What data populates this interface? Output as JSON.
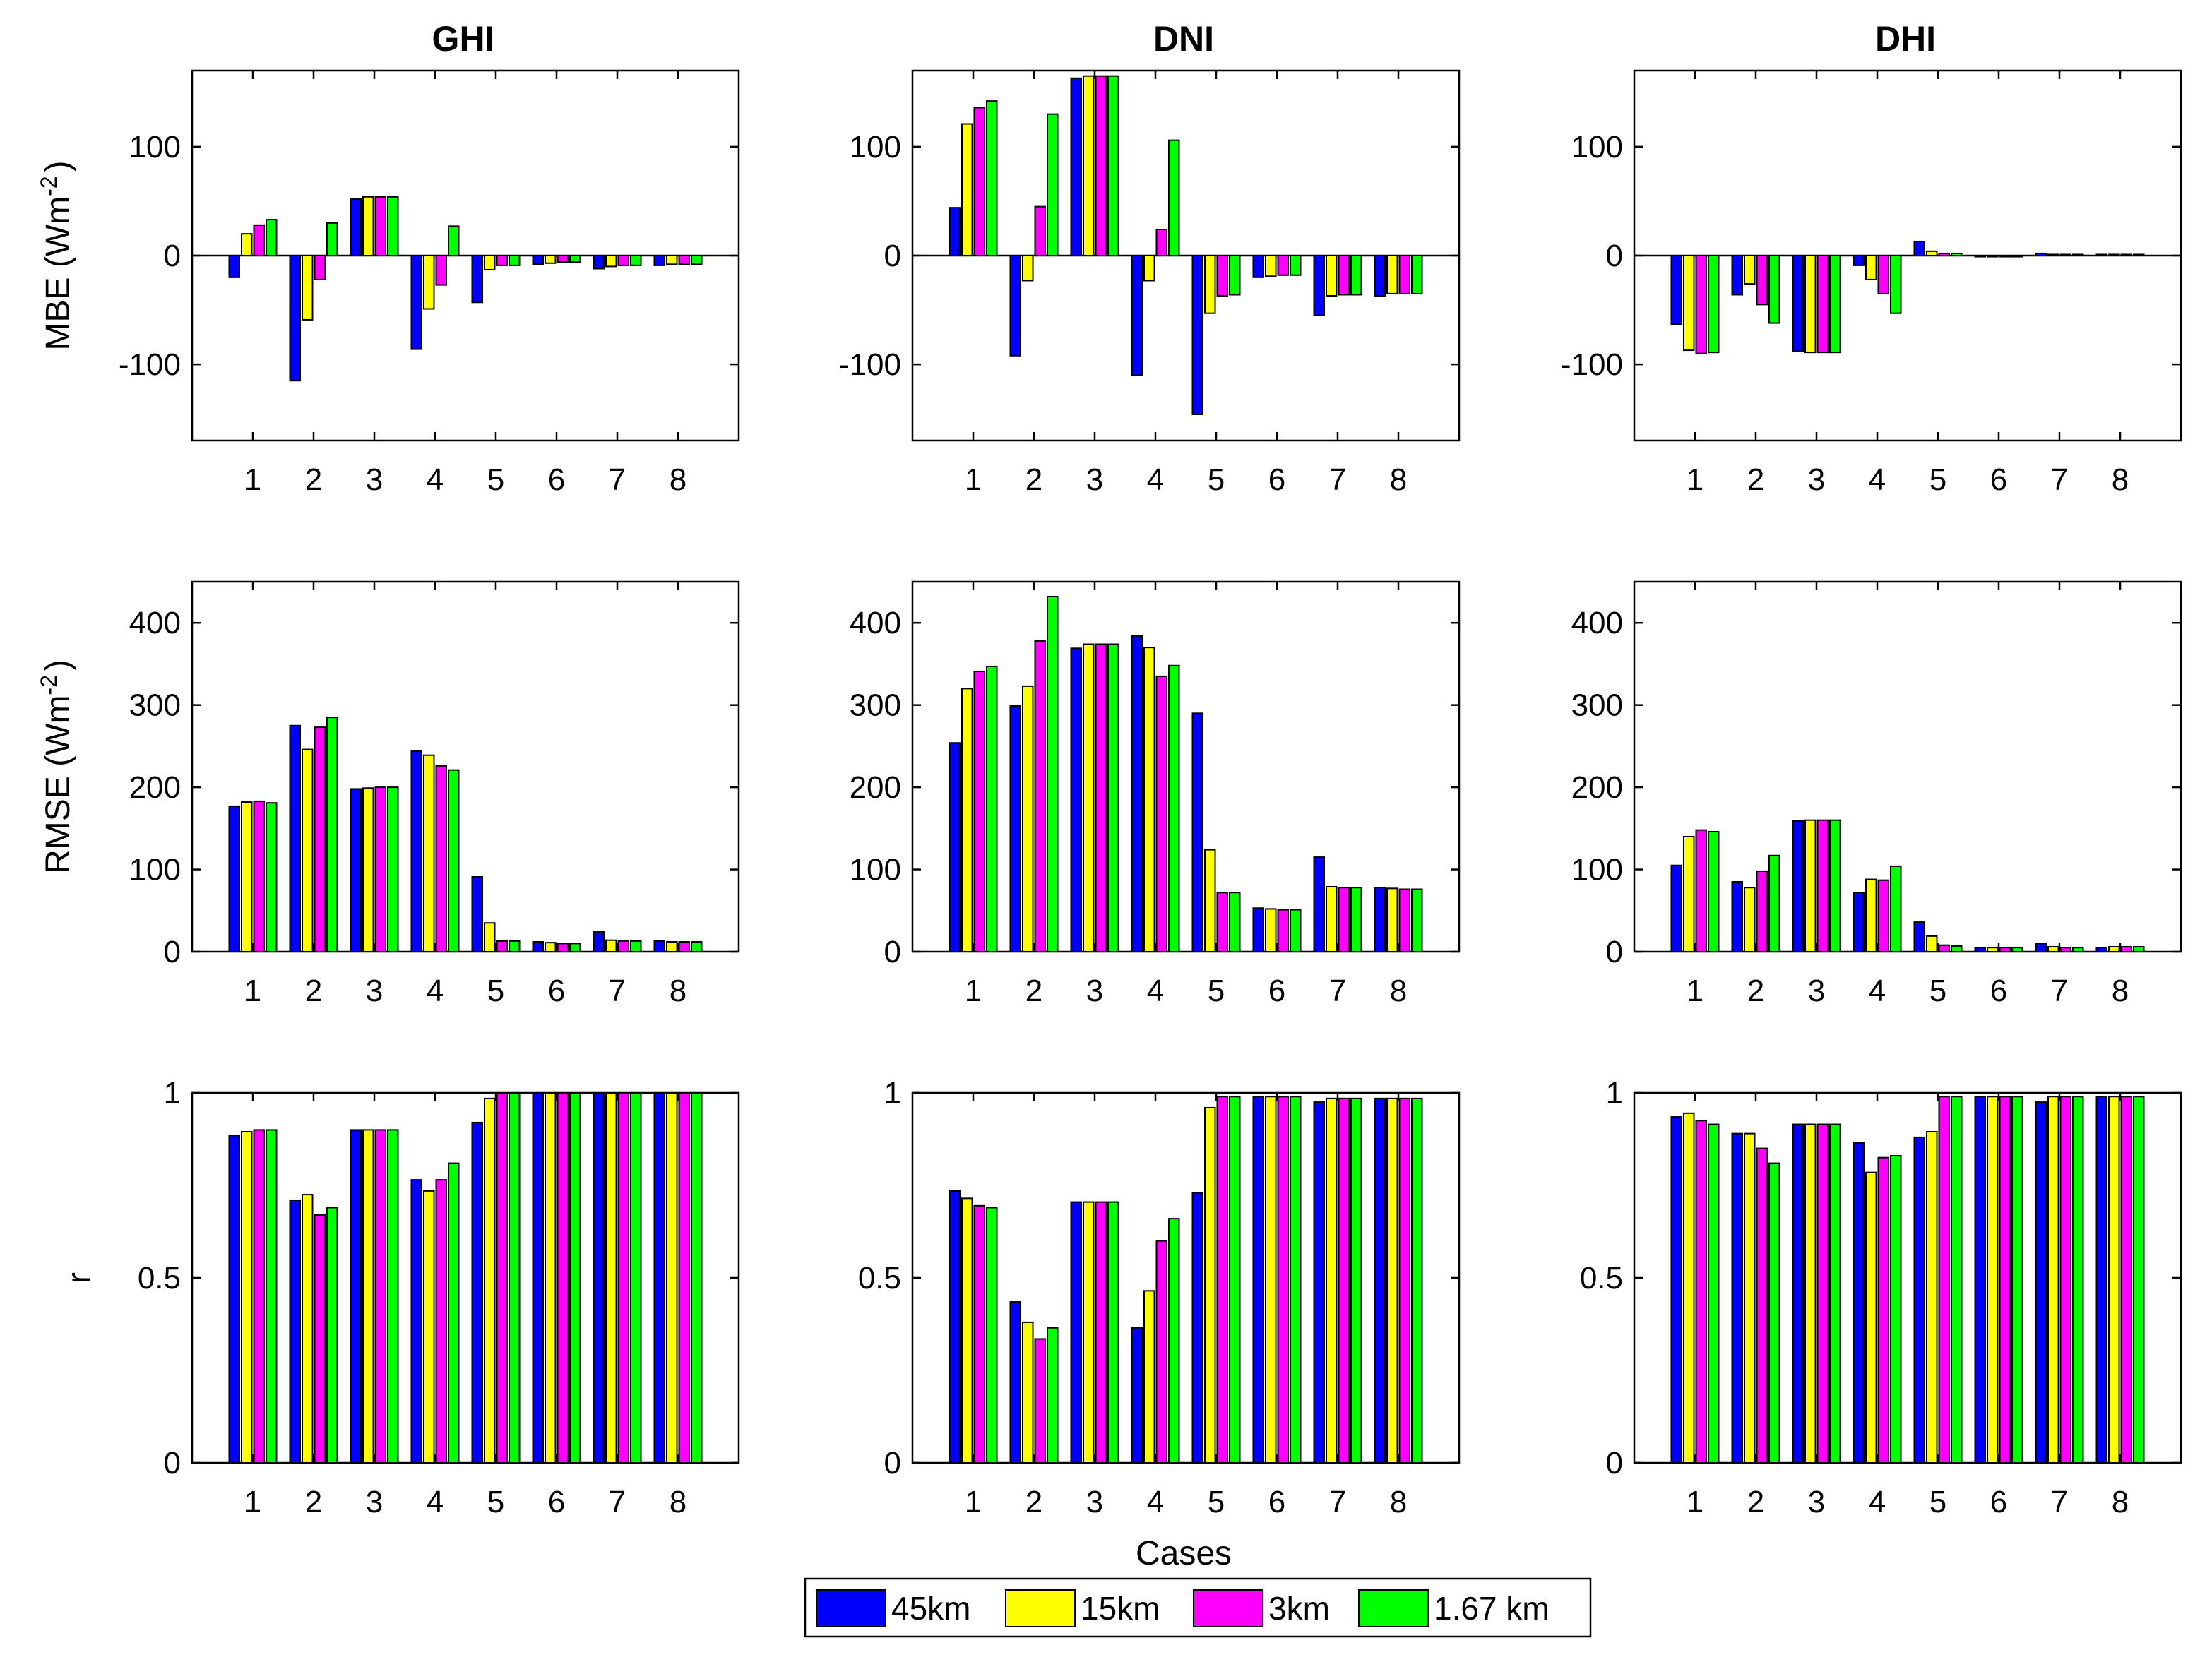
{
  "columns": [
    "GHI",
    "DNI",
    "DHI"
  ],
  "xlabel": "Cases",
  "row_ylabels": {
    "mbe": {
      "pre": "MBE (Wm",
      "sup": "-2",
      "post": ")"
    },
    "rmse": {
      "pre": "RMSE (Wm",
      "sup": "-2",
      "post": ")"
    },
    "r": {
      "pre": "r",
      "sup": "",
      "post": ""
    }
  },
  "legend": [
    {
      "name": "45km",
      "color": "#0000ff"
    },
    {
      "name": "15km",
      "color": "#ffff00"
    },
    {
      "name": "3km",
      "color": "#ff00ff"
    },
    {
      "name": "1.67 km",
      "color": "#00ff00"
    }
  ],
  "chart_data": [
    {
      "type": "bar",
      "row": "mbe",
      "col": "GHI",
      "ylim": [
        -170,
        170
      ],
      "yticks": [
        -100,
        0,
        100
      ],
      "ytick_labels": [
        "-100",
        "0",
        "100"
      ],
      "categories": [
        "1",
        "2",
        "3",
        "4",
        "5",
        "6",
        "7",
        "8"
      ],
      "series": [
        {
          "name": "45km",
          "values": [
            -20,
            -115,
            52,
            -86,
            -43,
            -8,
            -12,
            -9
          ]
        },
        {
          "name": "15km",
          "values": [
            20,
            -59,
            54,
            -49,
            -13,
            -7,
            -10,
            -8
          ]
        },
        {
          "name": "3km",
          "values": [
            28,
            -22,
            54,
            -27,
            -9,
            -6,
            -9,
            -8
          ]
        },
        {
          "name": "1.67 km",
          "values": [
            33,
            30,
            54,
            27,
            -9,
            -6,
            -9,
            -8
          ]
        }
      ]
    },
    {
      "type": "bar",
      "row": "mbe",
      "col": "DNI",
      "ylim": [
        -170,
        170
      ],
      "yticks": [
        -100,
        0,
        100
      ],
      "ytick_labels": [
        "-100",
        "0",
        "100"
      ],
      "categories": [
        "1",
        "2",
        "3",
        "4",
        "5",
        "6",
        "7",
        "8"
      ],
      "series": [
        {
          "name": "45km",
          "values": [
            44,
            -92,
            163,
            -110,
            -146,
            -20,
            -55,
            -37
          ]
        },
        {
          "name": "15km",
          "values": [
            121,
            -23,
            165,
            -23,
            -53,
            -19,
            -37,
            -35
          ]
        },
        {
          "name": "3km",
          "values": [
            136,
            45,
            165,
            24,
            -37,
            -18,
            -36,
            -35
          ]
        },
        {
          "name": "1.67 km",
          "values": [
            142,
            130,
            165,
            106,
            -36,
            -18,
            -36,
            -35
          ]
        }
      ]
    },
    {
      "type": "bar",
      "row": "mbe",
      "col": "DHI",
      "ylim": [
        -170,
        170
      ],
      "yticks": [
        -100,
        0,
        100
      ],
      "ytick_labels": [
        "-100",
        "0",
        "100"
      ],
      "categories": [
        "1",
        "2",
        "3",
        "4",
        "5",
        "6",
        "7",
        "8"
      ],
      "series": [
        {
          "name": "45km",
          "values": [
            -63,
            -36,
            -88,
            -9,
            13,
            -1,
            2,
            1
          ]
        },
        {
          "name": "15km",
          "values": [
            -87,
            -26,
            -89,
            -22,
            4,
            -1,
            1,
            1
          ]
        },
        {
          "name": "3km",
          "values": [
            -90,
            -45,
            -89,
            -35,
            2,
            -1,
            1,
            1
          ]
        },
        {
          "name": "1.67 km",
          "values": [
            -89,
            -62,
            -89,
            -53,
            2,
            -1,
            1,
            1
          ]
        }
      ]
    },
    {
      "type": "bar",
      "row": "rmse",
      "col": "GHI",
      "ylim": [
        0,
        450
      ],
      "yticks": [
        0,
        100,
        200,
        300,
        400
      ],
      "ytick_labels": [
        "0",
        "100",
        "200",
        "300",
        "400"
      ],
      "categories": [
        "1",
        "2",
        "3",
        "4",
        "5",
        "6",
        "7",
        "8"
      ],
      "series": [
        {
          "name": "45km",
          "values": [
            177,
            275,
            198,
            244,
            91,
            12,
            24,
            13
          ]
        },
        {
          "name": "15km",
          "values": [
            182,
            246,
            199,
            239,
            35,
            11,
            14,
            12
          ]
        },
        {
          "name": "3km",
          "values": [
            183,
            273,
            200,
            226,
            13,
            10,
            13,
            12
          ]
        },
        {
          "name": "1.67 km",
          "values": [
            181,
            285,
            200,
            221,
            13,
            10,
            13,
            12
          ]
        }
      ]
    },
    {
      "type": "bar",
      "row": "rmse",
      "col": "DNI",
      "ylim": [
        0,
        450
      ],
      "yticks": [
        0,
        100,
        200,
        300,
        400
      ],
      "ytick_labels": [
        "0",
        "100",
        "200",
        "300",
        "400"
      ],
      "categories": [
        "1",
        "2",
        "3",
        "4",
        "5",
        "6",
        "7",
        "8"
      ],
      "series": [
        {
          "name": "45km",
          "values": [
            254,
            299,
            369,
            384,
            290,
            53,
            115,
            78
          ]
        },
        {
          "name": "15km",
          "values": [
            320,
            323,
            374,
            370,
            124,
            52,
            79,
            77
          ]
        },
        {
          "name": "3km",
          "values": [
            341,
            378,
            374,
            335,
            72,
            51,
            78,
            76
          ]
        },
        {
          "name": "1.67 km",
          "values": [
            347,
            432,
            374,
            348,
            72,
            51,
            78,
            76
          ]
        }
      ]
    },
    {
      "type": "bar",
      "row": "rmse",
      "col": "DHI",
      "ylim": [
        0,
        450
      ],
      "yticks": [
        0,
        100,
        200,
        300,
        400
      ],
      "ytick_labels": [
        "0",
        "100",
        "200",
        "300",
        "400"
      ],
      "categories": [
        "1",
        "2",
        "3",
        "4",
        "5",
        "6",
        "7",
        "8"
      ],
      "series": [
        {
          "name": "45km",
          "values": [
            105,
            85,
            159,
            72,
            36,
            5,
            10,
            5
          ]
        },
        {
          "name": "15km",
          "values": [
            140,
            78,
            160,
            88,
            19,
            5,
            6,
            6
          ]
        },
        {
          "name": "3km",
          "values": [
            148,
            98,
            160,
            87,
            8,
            5,
            5,
            6
          ]
        },
        {
          "name": "1.67 km",
          "values": [
            146,
            117,
            160,
            104,
            7,
            5,
            5,
            6
          ]
        }
      ]
    },
    {
      "type": "bar",
      "row": "r",
      "col": "GHI",
      "ylim": [
        0,
        1
      ],
      "yticks": [
        0,
        0.5,
        1
      ],
      "ytick_labels": [
        "0",
        "0.5",
        "1"
      ],
      "categories": [
        "1",
        "2",
        "3",
        "4",
        "5",
        "6",
        "7",
        "8"
      ],
      "series": [
        {
          "name": "45km",
          "values": [
            0.885,
            0.71,
            0.9,
            0.765,
            0.92,
            1.0,
            1.0,
            1.0
          ]
        },
        {
          "name": "15km",
          "values": [
            0.895,
            0.725,
            0.9,
            0.735,
            0.985,
            1.0,
            1.0,
            1.0
          ]
        },
        {
          "name": "3km",
          "values": [
            0.9,
            0.67,
            0.9,
            0.765,
            1.0,
            1.0,
            1.0,
            1.0
          ]
        },
        {
          "name": "1.67 km",
          "values": [
            0.9,
            0.69,
            0.9,
            0.81,
            1.0,
            1.0,
            1.0,
            1.0
          ]
        }
      ]
    },
    {
      "type": "bar",
      "row": "r",
      "col": "DNI",
      "ylim": [
        0,
        1
      ],
      "yticks": [
        0,
        0.5,
        1
      ],
      "ytick_labels": [
        "0",
        "0.5",
        "1"
      ],
      "categories": [
        "1",
        "2",
        "3",
        "4",
        "5",
        "6",
        "7",
        "8"
      ],
      "series": [
        {
          "name": "45km",
          "values": [
            0.735,
            0.435,
            0.705,
            0.365,
            0.73,
            0.99,
            0.975,
            0.985
          ]
        },
        {
          "name": "15km",
          "values": [
            0.715,
            0.38,
            0.705,
            0.465,
            0.96,
            0.99,
            0.985,
            0.985
          ]
        },
        {
          "name": "3km",
          "values": [
            0.695,
            0.335,
            0.705,
            0.6,
            0.99,
            0.99,
            0.985,
            0.985
          ]
        },
        {
          "name": "1.67 km",
          "values": [
            0.69,
            0.365,
            0.705,
            0.66,
            0.99,
            0.99,
            0.985,
            0.985
          ]
        }
      ]
    },
    {
      "type": "bar",
      "row": "r",
      "col": "DHI",
      "ylim": [
        0,
        1
      ],
      "yticks": [
        0,
        0.5,
        1
      ],
      "ytick_labels": [
        "0",
        "0.5",
        "1"
      ],
      "categories": [
        "1",
        "2",
        "3",
        "4",
        "5",
        "6",
        "7",
        "8"
      ],
      "series": [
        {
          "name": "45km",
          "values": [
            0.935,
            0.89,
            0.915,
            0.865,
            0.88,
            0.99,
            0.975,
            0.99
          ]
        },
        {
          "name": "15km",
          "values": [
            0.945,
            0.89,
            0.915,
            0.785,
            0.895,
            0.99,
            0.99,
            0.99
          ]
        },
        {
          "name": "3km",
          "values": [
            0.925,
            0.85,
            0.915,
            0.825,
            0.99,
            0.99,
            0.99,
            0.99
          ]
        },
        {
          "name": "1.67 km",
          "values": [
            0.915,
            0.81,
            0.915,
            0.83,
            0.99,
            0.99,
            0.99,
            0.99
          ]
        }
      ]
    }
  ]
}
